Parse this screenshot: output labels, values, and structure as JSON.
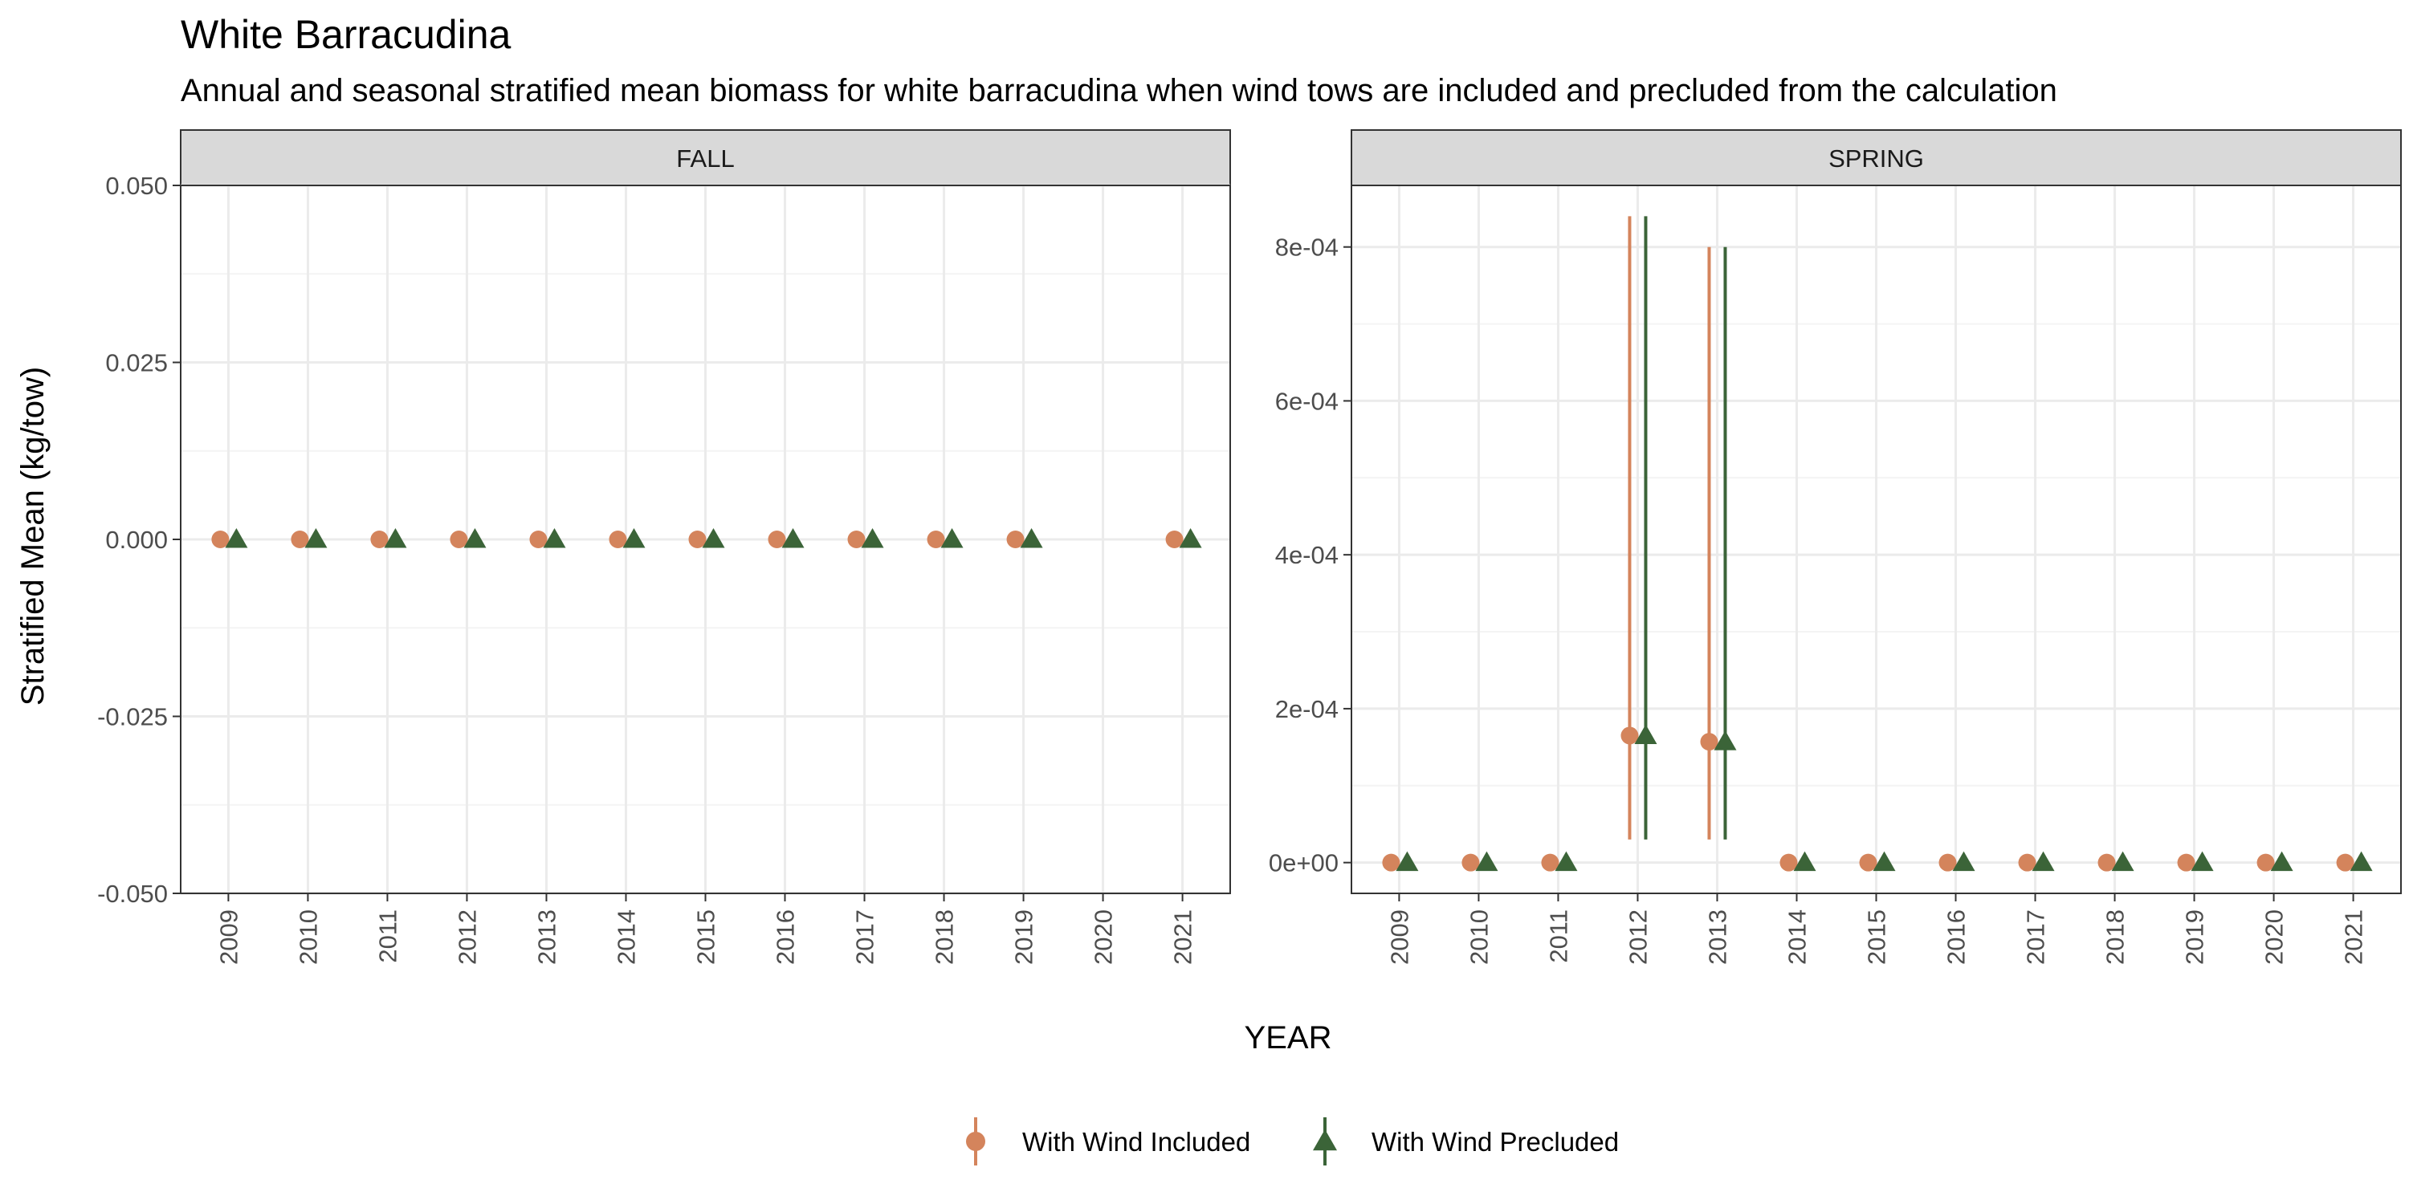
{
  "colors": {
    "included": "#d4845c",
    "precluded": "#3b6438",
    "strip_bg": "#d9d9d9",
    "grid_major": "#ebebeb",
    "grid_minor": "#f4f4f4",
    "panel_border": "#333333"
  },
  "chart_data": {
    "type": "scatter",
    "title": "White Barracudina",
    "subtitle": "Annual and seasonal stratified mean biomass for white barracudina when wind tows are included and precluded from the calculation",
    "xlabel": "YEAR",
    "ylabel": "Stratified Mean (kg/tow)",
    "legend": {
      "position": "bottom",
      "entries": [
        {
          "name": "With Wind Included",
          "marker": "circle",
          "color": "#d4845c"
        },
        {
          "name": "With Wind Precluded",
          "marker": "triangle",
          "color": "#3b6438"
        }
      ]
    },
    "facets": [
      {
        "name": "FALL",
        "ylim": [
          -0.05,
          0.05
        ],
        "yticks": [
          -0.05,
          -0.025,
          0,
          0.025,
          0.05
        ],
        "ytick_labels": [
          "-0.050",
          "-0.025",
          "0.000",
          "0.025",
          "0.050"
        ],
        "x_categories": [
          "2009",
          "2010",
          "2011",
          "2012",
          "2013",
          "2014",
          "2015",
          "2016",
          "2017",
          "2018",
          "2019",
          "2020",
          "2021"
        ],
        "series": [
          {
            "name": "With Wind Included",
            "points": [
              {
                "x": "2009",
                "y": 0
              },
              {
                "x": "2010",
                "y": 0
              },
              {
                "x": "2011",
                "y": 0
              },
              {
                "x": "2012",
                "y": 0
              },
              {
                "x": "2013",
                "y": 0
              },
              {
                "x": "2014",
                "y": 0
              },
              {
                "x": "2015",
                "y": 0
              },
              {
                "x": "2016",
                "y": 0
              },
              {
                "x": "2017",
                "y": 0
              },
              {
                "x": "2018",
                "y": 0
              },
              {
                "x": "2019",
                "y": 0
              },
              {
                "x": "2021",
                "y": 0
              }
            ]
          },
          {
            "name": "With Wind Precluded",
            "points": [
              {
                "x": "2009",
                "y": 0
              },
              {
                "x": "2010",
                "y": 0
              },
              {
                "x": "2011",
                "y": 0
              },
              {
                "x": "2012",
                "y": 0
              },
              {
                "x": "2013",
                "y": 0
              },
              {
                "x": "2014",
                "y": 0
              },
              {
                "x": "2015",
                "y": 0
              },
              {
                "x": "2016",
                "y": 0
              },
              {
                "x": "2017",
                "y": 0
              },
              {
                "x": "2018",
                "y": 0
              },
              {
                "x": "2019",
                "y": 0
              },
              {
                "x": "2021",
                "y": 0
              }
            ]
          }
        ]
      },
      {
        "name": "SPRING",
        "ylim": [
          -4e-05,
          0.00088
        ],
        "yticks": [
          0,
          0.0002,
          0.0004,
          0.0006,
          0.0008
        ],
        "ytick_labels": [
          "0e+00",
          "2e-04",
          "4e-04",
          "6e-04",
          "8e-04"
        ],
        "x_categories": [
          "2009",
          "2010",
          "2011",
          "2012",
          "2013",
          "2014",
          "2015",
          "2016",
          "2017",
          "2018",
          "2019",
          "2020",
          "2021"
        ],
        "series": [
          {
            "name": "With Wind Included",
            "points": [
              {
                "x": "2009",
                "y": 0
              },
              {
                "x": "2010",
                "y": 0
              },
              {
                "x": "2011",
                "y": 0
              },
              {
                "x": "2012",
                "y": 0.000165,
                "ymin": 3e-05,
                "ymax": 0.00084
              },
              {
                "x": "2013",
                "y": 0.000157,
                "ymin": 3e-05,
                "ymax": 0.0008
              },
              {
                "x": "2014",
                "y": 0
              },
              {
                "x": "2015",
                "y": 0
              },
              {
                "x": "2016",
                "y": 0
              },
              {
                "x": "2017",
                "y": 0
              },
              {
                "x": "2018",
                "y": 0
              },
              {
                "x": "2019",
                "y": 0
              },
              {
                "x": "2020",
                "y": 0
              },
              {
                "x": "2021",
                "y": 0
              }
            ]
          },
          {
            "name": "With Wind Precluded",
            "points": [
              {
                "x": "2009",
                "y": 0
              },
              {
                "x": "2010",
                "y": 0
              },
              {
                "x": "2011",
                "y": 0
              },
              {
                "x": "2012",
                "y": 0.000165,
                "ymin": 3e-05,
                "ymax": 0.00084
              },
              {
                "x": "2013",
                "y": 0.000157,
                "ymin": 3e-05,
                "ymax": 0.0008
              },
              {
                "x": "2014",
                "y": 0
              },
              {
                "x": "2015",
                "y": 0
              },
              {
                "x": "2016",
                "y": 0
              },
              {
                "x": "2017",
                "y": 0
              },
              {
                "x": "2018",
                "y": 0
              },
              {
                "x": "2019",
                "y": 0
              },
              {
                "x": "2020",
                "y": 0
              },
              {
                "x": "2021",
                "y": 0
              }
            ]
          }
        ]
      }
    ]
  }
}
